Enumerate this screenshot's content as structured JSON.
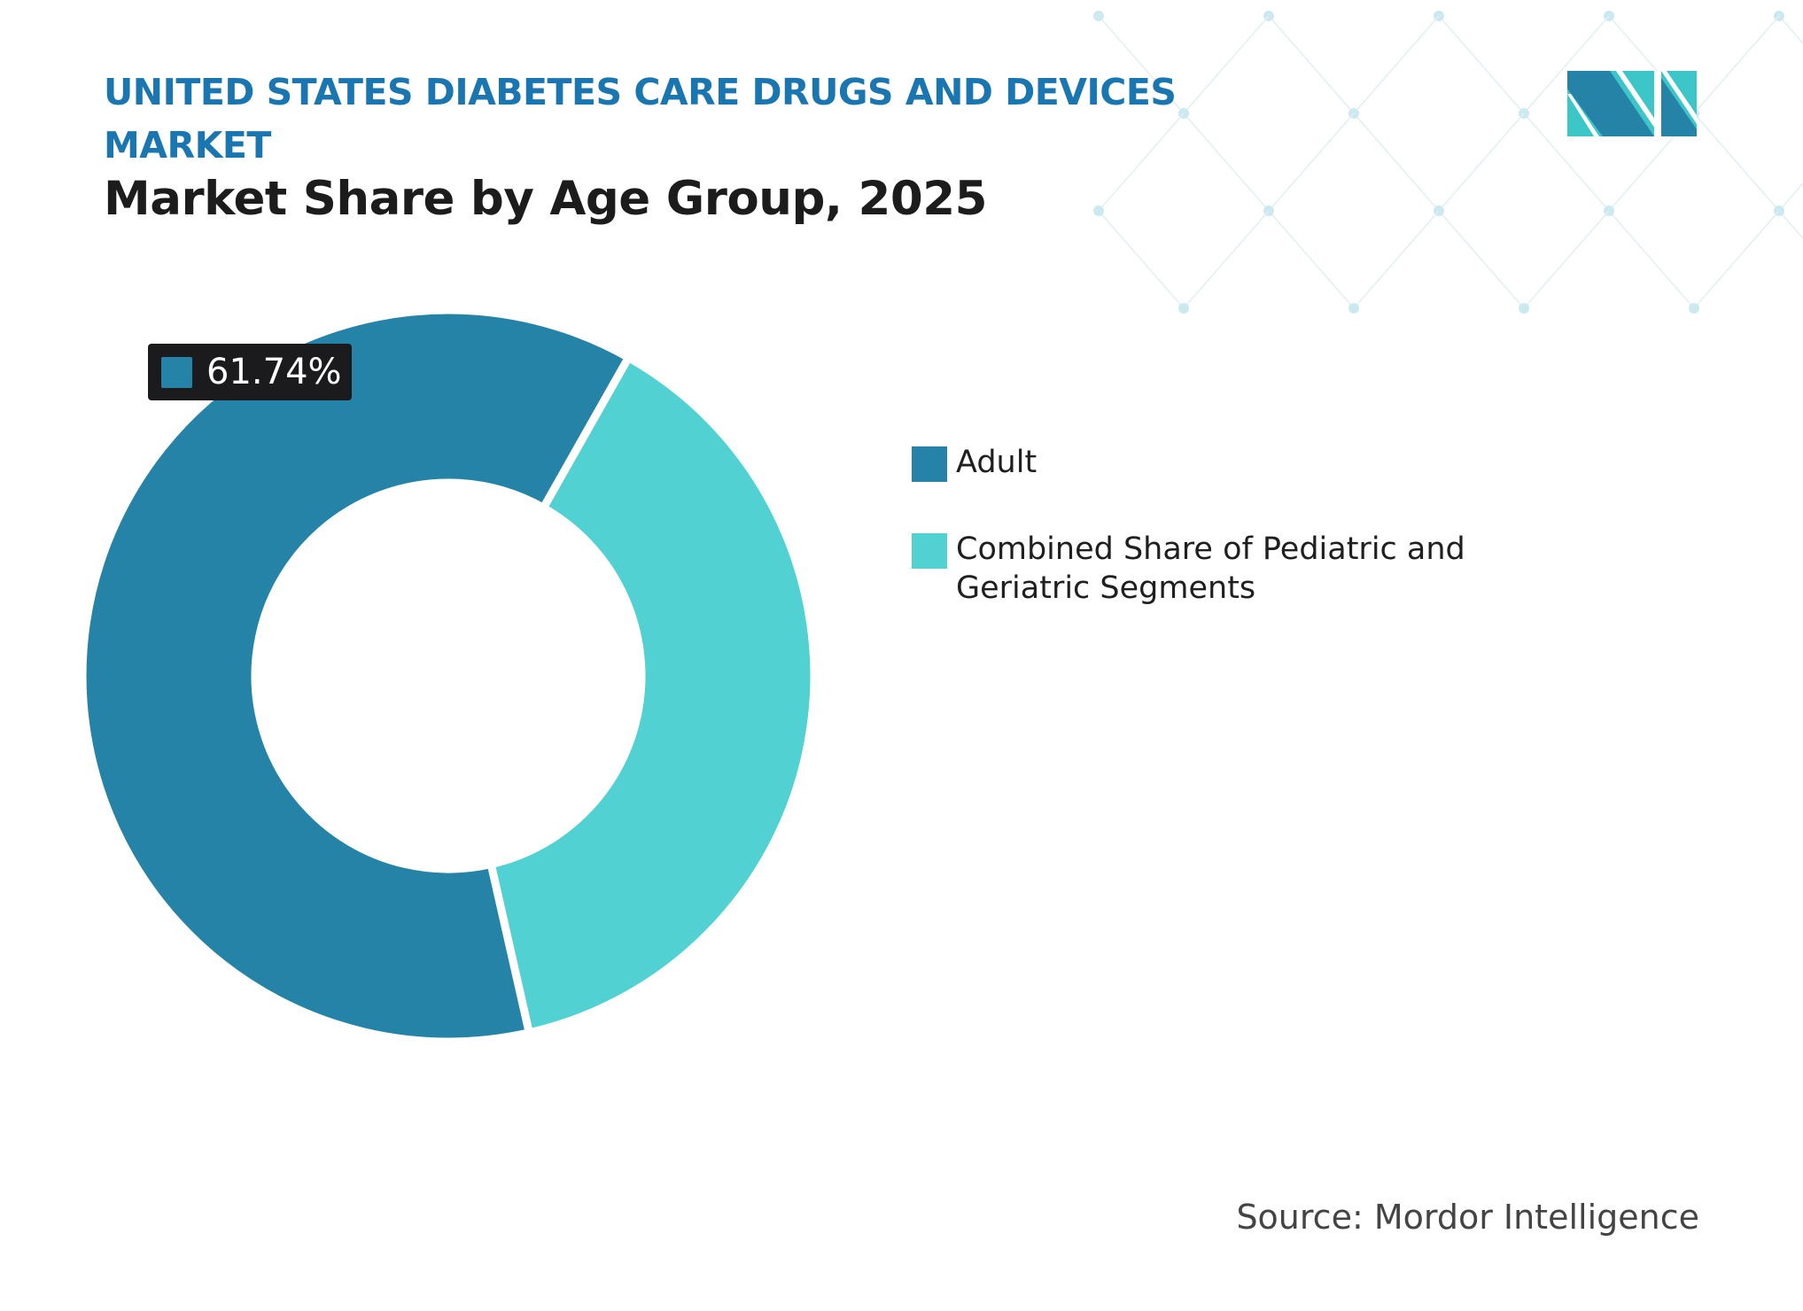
{
  "header": {
    "title": "UNITED STATES DIABETES CARE DRUGS AND DEVICES MARKET",
    "subtitle": "Market Share by Age Group, 2025"
  },
  "logo": {
    "name": "mordor-intelligence-logo",
    "colors": [
      "#2683a8",
      "#3cc6c8"
    ]
  },
  "chart_data": {
    "type": "pie",
    "variant": "donut",
    "title": "Market Share by Age Group, 2025",
    "categories": [
      "Adult",
      "Combined Share of Pediatric and Geriatric Segments"
    ],
    "values": [
      61.74,
      38.26
    ],
    "unit": "%",
    "colors": [
      "#2683a8",
      "#52d1d3"
    ],
    "data_labels": [
      {
        "category": "Adult",
        "text": "61.74%"
      }
    ],
    "legend_position": "right"
  },
  "source": "Source: Mordor Intelligence"
}
